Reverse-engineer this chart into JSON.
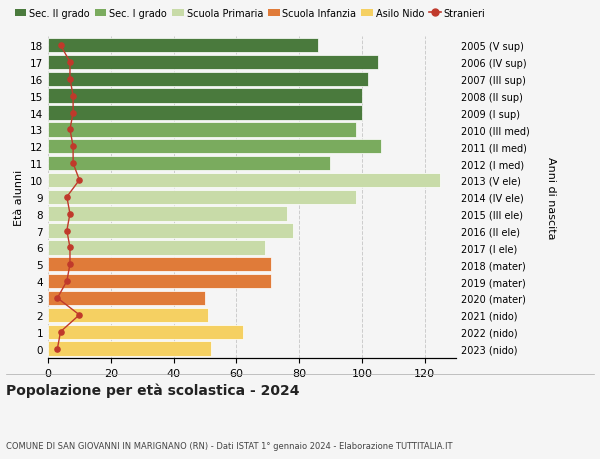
{
  "ages": [
    0,
    1,
    2,
    3,
    4,
    5,
    6,
    7,
    8,
    9,
    10,
    11,
    12,
    13,
    14,
    15,
    16,
    17,
    18
  ],
  "right_labels": [
    "2023 (nido)",
    "2022 (nido)",
    "2021 (nido)",
    "2020 (mater)",
    "2019 (mater)",
    "2018 (mater)",
    "2017 (I ele)",
    "2016 (II ele)",
    "2015 (III ele)",
    "2014 (IV ele)",
    "2013 (V ele)",
    "2012 (I med)",
    "2011 (II med)",
    "2010 (III med)",
    "2009 (I sup)",
    "2008 (II sup)",
    "2007 (III sup)",
    "2006 (IV sup)",
    "2005 (V sup)"
  ],
  "bar_values": [
    52,
    62,
    51,
    50,
    71,
    71,
    69,
    78,
    76,
    98,
    125,
    90,
    106,
    98,
    100,
    100,
    102,
    105,
    86
  ],
  "bar_colors": [
    "#f5d062",
    "#f5d062",
    "#f5d062",
    "#e07b39",
    "#e07b39",
    "#e07b39",
    "#c8dba8",
    "#c8dba8",
    "#c8dba8",
    "#c8dba8",
    "#c8dba8",
    "#7aab5e",
    "#7aab5e",
    "#7aab5e",
    "#4a7a3d",
    "#4a7a3d",
    "#4a7a3d",
    "#4a7a3d",
    "#4a7a3d"
  ],
  "stranieri_values": [
    3,
    4,
    10,
    3,
    6,
    7,
    7,
    6,
    7,
    6,
    10,
    8,
    8,
    7,
    8,
    8,
    7,
    7,
    4
  ],
  "legend_labels": [
    "Sec. II grado",
    "Sec. I grado",
    "Scuola Primaria",
    "Scuola Infanzia",
    "Asilo Nido",
    "Stranieri"
  ],
  "legend_colors": [
    "#4a7a3d",
    "#7aab5e",
    "#c8dba8",
    "#e07b39",
    "#f5d062",
    "#c0392b"
  ],
  "ylabel_left": "Età alunni",
  "ylabel_right": "Anni di nascita",
  "title": "Popolazione per età scolastica - 2024",
  "subtitle": "COMUNE DI SAN GIOVANNI IN MARIGNANO (RN) - Dati ISTAT 1° gennaio 2024 - Elaborazione TUTTITALIA.IT",
  "xlim": [
    0,
    130
  ],
  "xticks": [
    0,
    20,
    40,
    60,
    80,
    100,
    120
  ],
  "background_color": "#f5f5f5",
  "bar_edge_color": "white",
  "grid_color": "#cccccc",
  "stranieri_color": "#c0392b",
  "bar_height": 0.85
}
